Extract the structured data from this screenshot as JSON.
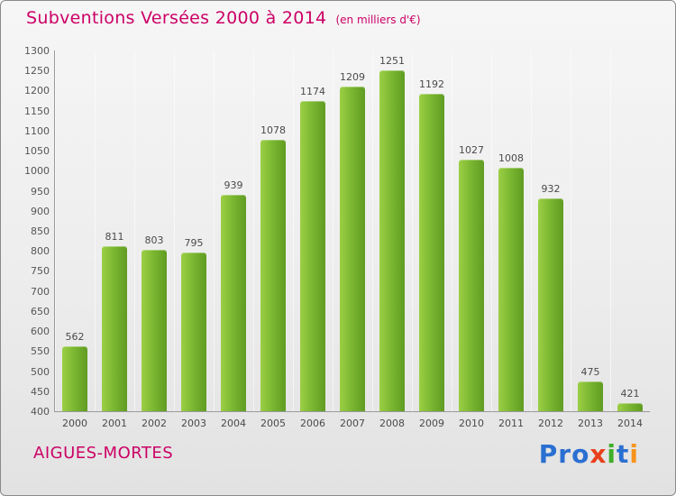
{
  "header": {
    "title": "Subventions Versées 2000 à 2014",
    "subtitle": "(en milliers d'€)",
    "title_color": "#cc0066"
  },
  "chart_data": {
    "type": "bar",
    "title": "Subventions Versées 2000 à 2014",
    "subtitle": "(en milliers d'€)",
    "categories": [
      "2000",
      "2001",
      "2002",
      "2003",
      "2004",
      "2005",
      "2006",
      "2007",
      "2008",
      "2009",
      "2010",
      "2011",
      "2012",
      "2013",
      "2014"
    ],
    "values": [
      562,
      811,
      803,
      795,
      939,
      1078,
      1174,
      1209,
      1251,
      1192,
      1027,
      1008,
      932,
      475,
      421
    ],
    "xlabel": "",
    "ylabel": "",
    "ylim": [
      400,
      1300
    ],
    "yticks": [
      400,
      450,
      500,
      550,
      600,
      650,
      700,
      750,
      800,
      850,
      900,
      950,
      1000,
      1050,
      1100,
      1150,
      1200,
      1250,
      1300
    ],
    "grid": "faint vertical column separators",
    "legend": "none",
    "bar_color_left": "#9ccf45",
    "bar_color_right": "#5f9c21"
  },
  "footer": {
    "location": "AIGUES-MORTES",
    "brand": "Proxiti",
    "brand_letters": [
      {
        "ch": "P",
        "color": "#2a6fd1"
      },
      {
        "ch": "r",
        "color": "#2a6fd1"
      },
      {
        "ch": "o",
        "color": "#2a6fd1"
      },
      {
        "ch": "x",
        "color": "#e8401c"
      },
      {
        "ch": "i",
        "color": "#3fae2a"
      },
      {
        "ch": "t",
        "color": "#2a6fd1"
      },
      {
        "ch": "i",
        "color": "#f7941d"
      }
    ]
  }
}
